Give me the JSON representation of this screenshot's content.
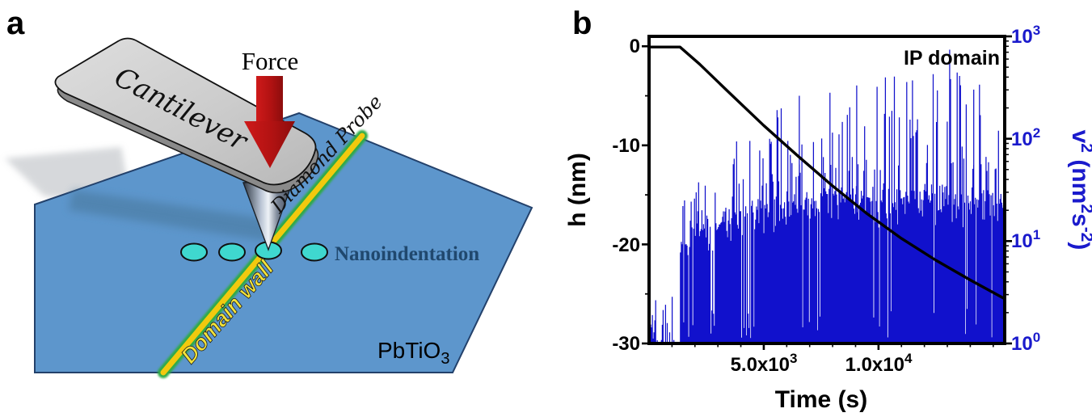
{
  "figure": {
    "panel_a_label": "a",
    "panel_b_label": "b"
  },
  "panel_a": {
    "force_label": "Force",
    "cantilever_label": "Cantilever",
    "probe_label": "Diamond Probe",
    "nanoindentation_label": "Nanoindentation",
    "domain_wall_label": "Domain wall",
    "material": {
      "base": "PbTiO",
      "sub": "3"
    },
    "colors": {
      "surface": "#5d96cc",
      "surface_edge": "#23416b",
      "wall_yellow": "#f2c90e",
      "wall_green": "#2fab45",
      "indent_fill": "#3fd8cf",
      "arrow_red": "#b11212",
      "cantilever_gray": "#cecece"
    }
  },
  "chart_data": {
    "type": "line+bars",
    "annotation": "IP domain",
    "xlabel": "Time (s)",
    "ylabel_left": "h (nm)",
    "ylabel_right": {
      "p1": "v",
      "p2": "2",
      "p3": " (nm",
      "p4": "2",
      "p5": "s",
      "p6": "-2",
      "p7": ")"
    },
    "xlim": [
      0,
      15500
    ],
    "ylim_left": [
      -30,
      1
    ],
    "ylim_right_log": [
      1,
      1000
    ],
    "grid": false,
    "x_ticks": [
      {
        "value": 5000,
        "mant": "5.0x10",
        "exp": "3"
      },
      {
        "value": 10000,
        "mant": "1.0x10",
        "exp": "4"
      }
    ],
    "x_minor_step": 1000,
    "left_ticks": [
      {
        "value": 0,
        "label": "0"
      },
      {
        "value": -10,
        "label": "-10"
      },
      {
        "value": -20,
        "label": "-20"
      },
      {
        "value": -30,
        "label": "-30"
      }
    ],
    "left_minor_ticks": [
      -5,
      -15,
      -25
    ],
    "right_ticks": [
      {
        "log": 3,
        "base": "10",
        "exp": "3"
      },
      {
        "log": 2,
        "base": "10",
        "exp": "2"
      },
      {
        "log": 1,
        "base": "10",
        "exp": "1"
      },
      {
        "log": 0,
        "base": "10",
        "exp": "0"
      }
    ],
    "h_line": {
      "color": "#000000",
      "points": [
        [
          0,
          -0.08
        ],
        [
          1350,
          -0.08
        ],
        [
          2200,
          -1.8
        ],
        [
          3500,
          -4.7
        ],
        [
          5000,
          -8.0
        ],
        [
          6500,
          -11.1
        ],
        [
          8000,
          -14.1
        ],
        [
          9500,
          -16.9
        ],
        [
          11000,
          -19.4
        ],
        [
          12500,
          -21.6
        ],
        [
          14000,
          -23.6
        ],
        [
          15500,
          -25.5
        ]
      ]
    },
    "v2_bars": {
      "color": "#1111cc",
      "seed": 11,
      "step_s": 36,
      "phase1_end": 1340,
      "phase1": {
        "density": 0.52,
        "log_min": 0.03,
        "log_max": 0.58
      },
      "median_env": [
        [
          1340,
          1.12
        ],
        [
          2200,
          1.2
        ],
        [
          3500,
          1.32
        ],
        [
          5000,
          1.42
        ],
        [
          7000,
          1.5
        ],
        [
          9000,
          1.52
        ],
        [
          12000,
          1.55
        ],
        [
          15500,
          1.48
        ]
      ],
      "jitter": 0.16,
      "spike_prob": 0.26,
      "spike_env": [
        [
          1340,
          1.4
        ],
        [
          2500,
          1.8
        ],
        [
          4000,
          2.1
        ],
        [
          5500,
          2.35
        ],
        [
          7000,
          2.5
        ],
        [
          9000,
          2.6
        ],
        [
          12000,
          2.65
        ],
        [
          15500,
          2.68
        ]
      ],
      "dip_prob_early": 0.1,
      "dip_prob_late": 0.035,
      "dip_t_split": 4500,
      "extra_spikes": [
        [
          6550,
          2.42
        ],
        [
          9050,
          2.52
        ],
        [
          10300,
          2.6
        ],
        [
          11480,
          2.57
        ],
        [
          13100,
          2.87
        ],
        [
          14150,
          2.48
        ]
      ]
    }
  }
}
